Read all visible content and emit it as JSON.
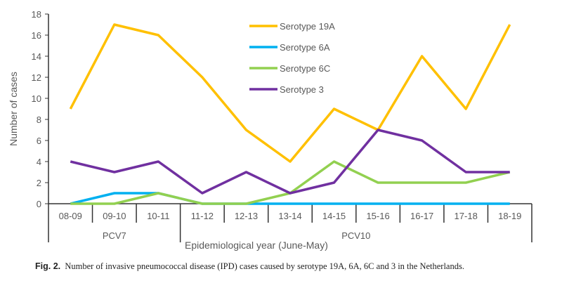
{
  "chart_data": {
    "type": "line",
    "title": "",
    "xlabel": "Epidemiological year (June-May)",
    "ylabel": "Number of cases",
    "ylim": [
      0,
      18
    ],
    "yticks": [
      0,
      2,
      4,
      6,
      8,
      10,
      12,
      14,
      16,
      18
    ],
    "categories": [
      "08-09",
      "09-10",
      "10-11",
      "11-12",
      "12-13",
      "13-14",
      "14-15",
      "15-16",
      "16-17",
      "17-18",
      "18-19"
    ],
    "groups": [
      {
        "label": "PCV7",
        "from": 0,
        "to": 2
      },
      {
        "label": "PCV10",
        "from": 3,
        "to": 10
      }
    ],
    "legend_position": "top-center",
    "grid": false,
    "series": [
      {
        "name": "Serotype 19A",
        "color": "#FFC000",
        "values": [
          9,
          17,
          16,
          12,
          7,
          4,
          9,
          7,
          14,
          9,
          17
        ]
      },
      {
        "name": "Serotype 6A",
        "color": "#00B0F0",
        "values": [
          0,
          1,
          1,
          0,
          0,
          0,
          0,
          0,
          0,
          0,
          0
        ]
      },
      {
        "name": "Serotype 6C",
        "color": "#92D050",
        "values": [
          0,
          0,
          1,
          0,
          0,
          1,
          4,
          2,
          2,
          2,
          3
        ]
      },
      {
        "name": "Serotype 3",
        "color": "#7030A0",
        "values": [
          4,
          3,
          4,
          1,
          3,
          1,
          2,
          7,
          6,
          3,
          3
        ]
      }
    ]
  },
  "caption": {
    "label": "Fig. 2.",
    "text": "Number of invasive pneumococcal disease (IPD) cases caused by serotype 19A, 6A, 6C and 3 in the Netherlands."
  }
}
